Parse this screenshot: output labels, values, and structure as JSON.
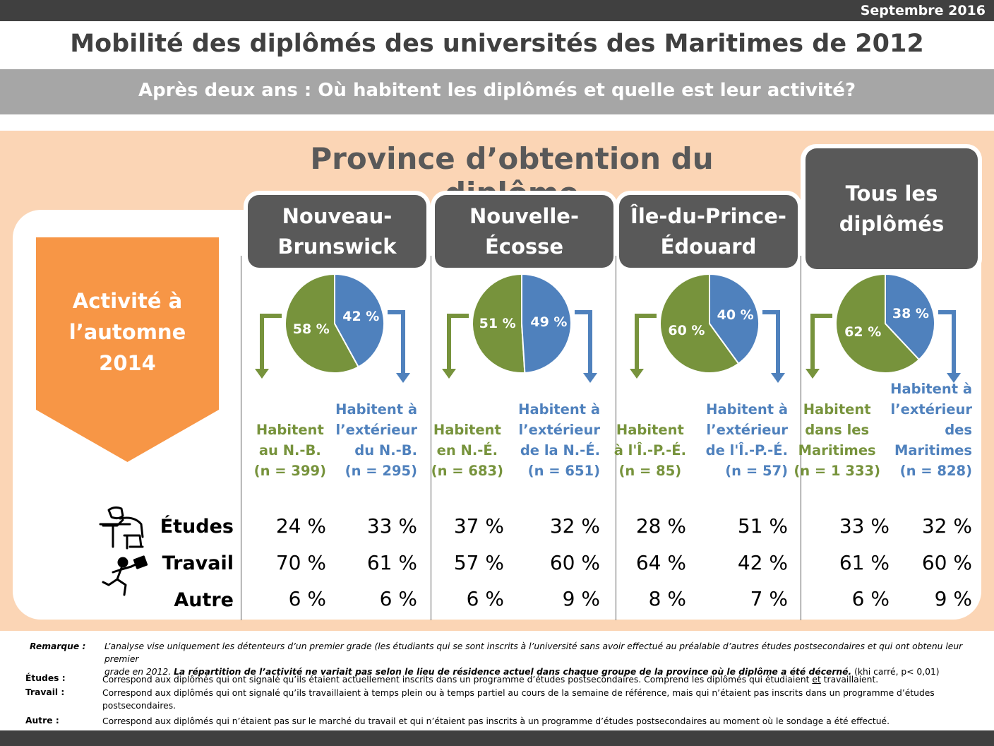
{
  "header": {
    "date": "Septembre 2016",
    "title": "Mobilité des diplômés des universités des Maritimes de 2012",
    "subtitle": "Après deux ans : Où habitent les diplômés et quelle est leur activité?",
    "section_title": "Province d’obtention du diplôme",
    "activity_label": "Activité à\nl’automne\n2014"
  },
  "colors": {
    "green": "#77933c",
    "blue": "#4f81bd",
    "orange": "#f79646",
    "tab": "#595959",
    "peach": "#fbd5b5"
  },
  "chart_data": {
    "type": "pie",
    "rows": [
      "Études",
      "Travail",
      "Autre"
    ],
    "groups": [
      {
        "name": "Nouveau-\nBrunswick",
        "slices": [
          {
            "label": "58 %",
            "value": 58
          },
          {
            "label": "42 %",
            "value": 42
          }
        ],
        "left_label": "Habitent\nau N.-B.\n(n = 399)",
        "right_label": "Habitent à\nl’extérieur\ndu N.-B.\n(n = 295)",
        "left_values": [
          "24 %",
          "70 %",
          "6 %"
        ],
        "right_values": [
          "33 %",
          "61 %",
          "6 %"
        ]
      },
      {
        "name": "Nouvelle-\nÉcosse",
        "slices": [
          {
            "label": "51 %",
            "value": 51
          },
          {
            "label": "49 %",
            "value": 49
          }
        ],
        "left_label": "Habitent\nen N.-É.\n(n = 683)",
        "right_label": "Habitent à\nl’extérieur\nde la N.-É.\n(n = 651)",
        "left_values": [
          "37 %",
          "57 %",
          "6 %"
        ],
        "right_values": [
          "32 %",
          "60 %",
          "9 %"
        ]
      },
      {
        "name": "Île-du-Prince-\nÉdouard",
        "slices": [
          {
            "label": "60 %",
            "value": 60
          },
          {
            "label": "40 %",
            "value": 40
          }
        ],
        "left_label": "Habitent\nà l'Î.-P.-É.\n(n = 85)",
        "right_label": "Habitent à\nl’extérieur\nde l'Î.-P.-É.\n(n = 57)",
        "left_values": [
          "28 %",
          "64 %",
          "8 %"
        ],
        "right_values": [
          "51 %",
          "42 %",
          "7 %"
        ]
      },
      {
        "name": "Tous les\ndiplômés",
        "slices": [
          {
            "label": "62 %",
            "value": 62
          },
          {
            "label": "38 %",
            "value": 38
          }
        ],
        "left_label": "Habitent\ndans les\nMaritimes\n(n = 1 333)",
        "right_label": "Habitent à\nl’extérieur\ndes\nMaritimes\n(n = 828)",
        "left_values": [
          "33 %",
          "61 %",
          "6 %"
        ],
        "right_values": [
          "32 %",
          "60 %",
          "9 %"
        ]
      }
    ]
  },
  "notes": {
    "remarque_key": "Remarque :",
    "remarque_line1": "L’analyse vise uniquement les détenteurs d’un premier grade (les étudiants qui se sont inscrits à l’université sans avoir effectué au préalable d’autres études postsecondaires et qui ont obtenu leur premier",
    "remarque_line2a": "grade en 2012.  ",
    "remarque_line2b": "La répartition de l’activité ne variait pas selon le lieu de résidence actuel dans chaque groupe de la province où le diplôme a été décerné.",
    "remarque_line2c": " (khi carré, p< 0,01)",
    "etudes_key": "Études :",
    "etudes_txt_a": "Correspond aux diplômés qui ont signalé qu’ils étaient actuellement inscrits dans un programme d’études postsecondaires. Comprend les diplômés qui étudiaient ",
    "etudes_txt_et": "et",
    "etudes_txt_b": " travaillaient.",
    "travail_key": "Travail :",
    "travail_txt": "Correspond aux diplômés qui ont signalé qu’ils travaillaient à temps plein ou à temps partiel au cours de la semaine de référence, mais qui n’étaient pas inscrits dans un programme d’études postsecondaires.",
    "autre_key": "Autre :",
    "autre_txt": "Correspond aux diplômés qui n’étaient pas sur le marché du travail et qui n’étaient pas inscrits à un programme d’études postsecondaires au moment où le sondage a été effectué."
  }
}
